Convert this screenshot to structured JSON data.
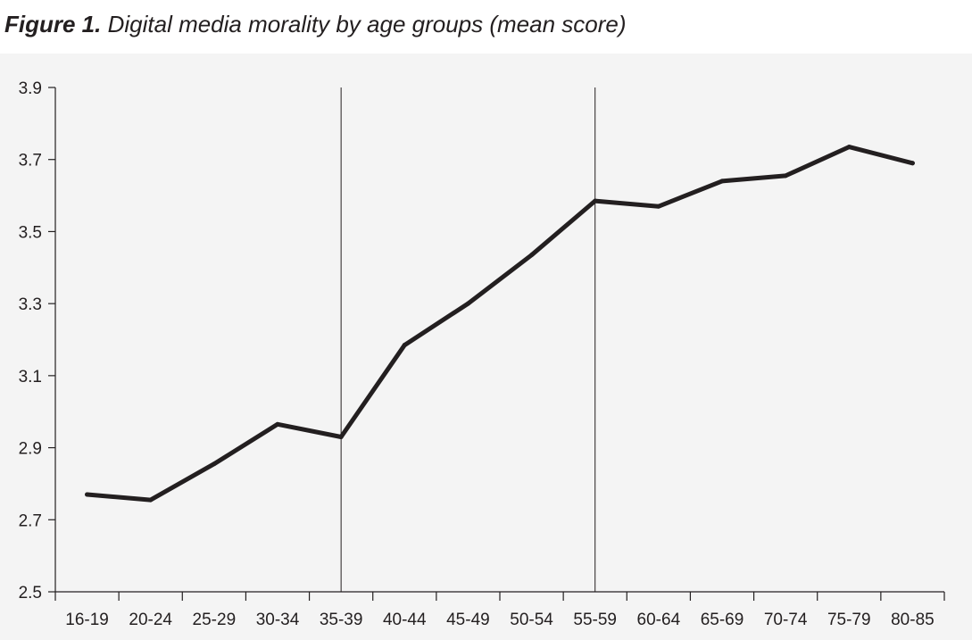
{
  "figure": {
    "label": "Figure 1.",
    "caption": "Digital media morality by age groups (mean score)"
  },
  "chart_data": {
    "type": "line",
    "title": "Figure 1. Digital media morality by age groups (mean score)",
    "xlabel": "",
    "ylabel": "",
    "categories": [
      "16-19",
      "20-24",
      "25-29",
      "30-34",
      "35-39",
      "40-44",
      "45-49",
      "50-54",
      "55-59",
      "60-64",
      "65-69",
      "70-74",
      "75-79",
      "80-85"
    ],
    "series": [
      {
        "values": [
          2.77,
          2.755,
          2.855,
          2.965,
          2.93,
          3.185,
          3.3,
          3.435,
          3.585,
          3.57,
          3.64,
          3.655,
          3.735,
          3.69
        ],
        "color": "#231f20"
      }
    ],
    "ylim": [
      2.5,
      3.9
    ],
    "yticks": [
      "2.5",
      "2.7",
      "2.9",
      "3.1",
      "3.3",
      "3.5",
      "3.7",
      "3.9"
    ],
    "reference_lines_at": [
      "35-39",
      "55-59"
    ],
    "grid": false,
    "legend": "none"
  }
}
